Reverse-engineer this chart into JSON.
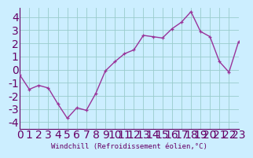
{
  "x": [
    0,
    1,
    2,
    3,
    4,
    5,
    6,
    7,
    8,
    9,
    10,
    11,
    12,
    13,
    14,
    15,
    16,
    17,
    18,
    19,
    20,
    21,
    22,
    23
  ],
  "y": [
    -0.4,
    -1.5,
    -1.2,
    -1.4,
    -2.6,
    -3.7,
    -2.9,
    -3.1,
    -1.8,
    -0.1,
    0.6,
    1.2,
    1.5,
    2.6,
    2.5,
    2.4,
    3.1,
    3.6,
    4.4,
    2.9,
    2.5,
    0.6,
    -0.2,
    2.1
  ],
  "line_color": "#993399",
  "marker": "+",
  "marker_size": 3.5,
  "bg_color": "#cceeff",
  "grid_color": "#99cccc",
  "axis_color": "#660066",
  "tick_color": "#660066",
  "xlabel": "Windchill (Refroidissement éolien,°C)",
  "ylabel": "",
  "xlim": [
    0,
    23
  ],
  "ylim": [
    -4.5,
    4.7
  ],
  "yticks": [
    -4,
    -3,
    -2,
    -1,
    0,
    1,
    2,
    3,
    4
  ],
  "xticks": [
    0,
    1,
    2,
    3,
    4,
    5,
    6,
    7,
    8,
    9,
    10,
    11,
    12,
    13,
    14,
    15,
    16,
    17,
    18,
    19,
    20,
    21,
    22,
    23
  ],
  "font_family": "monospace",
  "xlabel_fontsize": 6.5,
  "tick_fontsize": 6,
  "line_width": 1.0
}
